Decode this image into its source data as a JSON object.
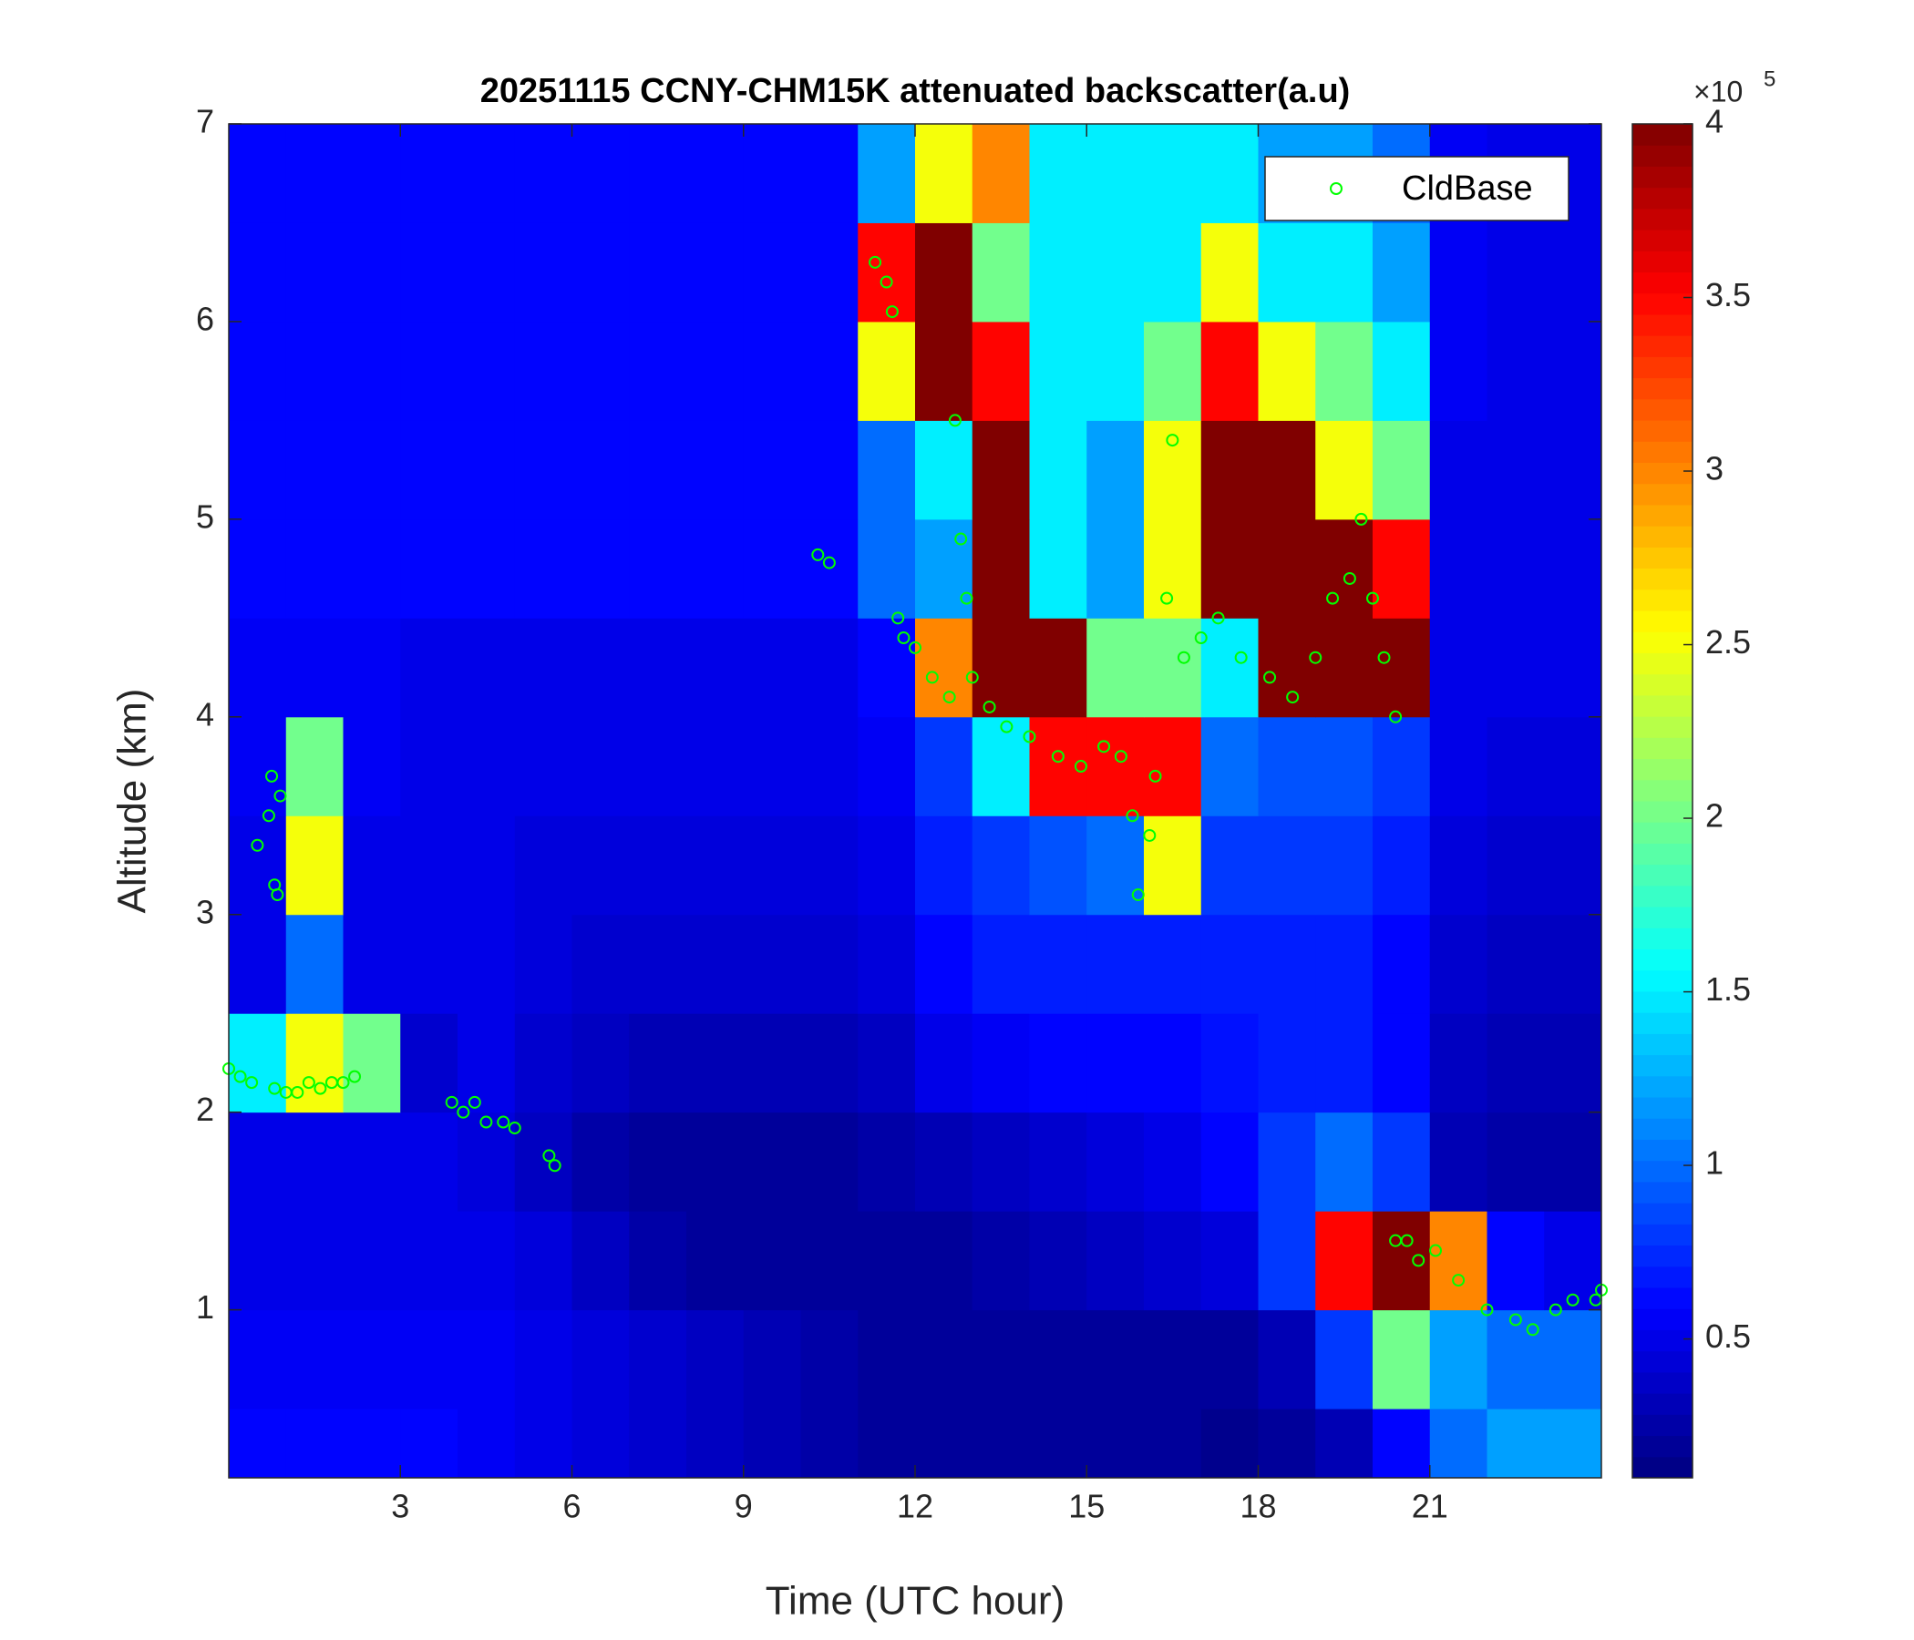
{
  "chart_data": {
    "type": "heatmap",
    "title": "20251115 CCNY-CHM15K attenuated backscatter(a.u)",
    "xlabel": "Time (UTC hour)",
    "ylabel": "Altitude (km)",
    "xlim": [
      0,
      24
    ],
    "xticks": [
      3,
      6,
      9,
      12,
      15,
      18,
      21
    ],
    "ylim": [
      0.15,
      7
    ],
    "yticks": [
      1,
      2,
      3,
      4,
      5,
      6,
      7
    ],
    "x_edges": [
      0,
      1,
      2,
      3,
      4,
      5,
      6,
      7,
      8,
      9,
      10,
      11,
      12,
      13,
      14,
      15,
      16,
      17,
      18,
      19,
      20,
      21,
      22,
      23,
      24
    ],
    "y_edges": [
      0.15,
      0.5,
      1,
      1.5,
      2,
      2.5,
      3,
      3.5,
      4,
      4.5,
      5,
      5.5,
      6,
      6.5,
      7
    ],
    "z": [
      [
        0.6,
        0.6,
        0.6,
        0.6,
        0.55,
        0.5,
        0.45,
        0.4,
        0.35,
        0.3,
        0.25,
        0.2,
        0.2,
        0.2,
        0.2,
        0.2,
        0.2,
        0.15,
        0.2,
        0.3,
        0.6,
        1.0,
        1.2,
        1.2
      ],
      [
        0.55,
        0.55,
        0.55,
        0.55,
        0.55,
        0.5,
        0.45,
        0.4,
        0.35,
        0.3,
        0.25,
        0.2,
        0.2,
        0.2,
        0.2,
        0.2,
        0.2,
        0.2,
        0.3,
        0.8,
        2.0,
        1.2,
        1.0,
        1.0
      ],
      [
        0.5,
        0.5,
        0.5,
        0.5,
        0.5,
        0.45,
        0.35,
        0.25,
        0.2,
        0.2,
        0.2,
        0.2,
        0.2,
        0.25,
        0.3,
        0.35,
        0.4,
        0.45,
        0.8,
        3.5,
        4,
        3.0,
        0.6,
        0.5
      ],
      [
        0.5,
        0.5,
        0.5,
        0.5,
        0.45,
        0.35,
        0.25,
        0.2,
        0.2,
        0.2,
        0.2,
        0.25,
        0.3,
        0.35,
        0.4,
        0.45,
        0.5,
        0.6,
        0.8,
        1.0,
        0.8,
        0.3,
        0.25,
        0.25
      ],
      [
        1.5,
        2.5,
        2.0,
        0.4,
        0.5,
        0.4,
        0.35,
        0.3,
        0.3,
        0.3,
        0.3,
        0.35,
        0.5,
        0.55,
        0.6,
        0.6,
        0.6,
        0.65,
        0.7,
        0.7,
        0.6,
        0.35,
        0.3,
        0.3
      ],
      [
        0.5,
        1.0,
        0.5,
        0.5,
        0.5,
        0.45,
        0.4,
        0.4,
        0.4,
        0.4,
        0.4,
        0.45,
        0.6,
        0.7,
        0.7,
        0.7,
        0.7,
        0.7,
        0.7,
        0.7,
        0.6,
        0.4,
        0.35,
        0.35
      ],
      [
        0.5,
        2.5,
        0.5,
        0.5,
        0.5,
        0.45,
        0.45,
        0.45,
        0.45,
        0.45,
        0.45,
        0.5,
        0.7,
        0.8,
        0.9,
        1.0,
        2.5,
        0.8,
        0.8,
        0.8,
        0.7,
        0.45,
        0.4,
        0.4
      ],
      [
        0.55,
        2.0,
        0.55,
        0.5,
        0.5,
        0.5,
        0.5,
        0.5,
        0.5,
        0.5,
        0.5,
        0.55,
        0.8,
        1.5,
        3.5,
        3.5,
        3.5,
        1.0,
        0.9,
        0.9,
        0.8,
        0.5,
        0.45,
        0.45
      ],
      [
        0.55,
        0.55,
        0.55,
        0.5,
        0.5,
        0.5,
        0.5,
        0.5,
        0.5,
        0.5,
        0.5,
        0.6,
        3.0,
        4,
        4,
        2.0,
        2.0,
        1.5,
        4,
        4,
        4,
        0.5,
        0.5,
        0.5
      ],
      [
        0.6,
        0.6,
        0.6,
        0.6,
        0.6,
        0.6,
        0.6,
        0.6,
        0.6,
        0.6,
        0.6,
        1.0,
        1.2,
        4,
        1.5,
        1.2,
        2.5,
        4,
        4,
        4,
        3.5,
        0.5,
        0.5,
        0.5
      ],
      [
        0.6,
        0.6,
        0.6,
        0.6,
        0.6,
        0.6,
        0.6,
        0.6,
        0.6,
        0.6,
        0.6,
        1.0,
        1.5,
        4,
        1.5,
        1.2,
        2.5,
        4,
        4,
        2.5,
        2.0,
        0.5,
        0.5,
        0.5
      ],
      [
        0.6,
        0.6,
        0.6,
        0.6,
        0.6,
        0.6,
        0.6,
        0.6,
        0.6,
        0.6,
        0.6,
        2.5,
        4,
        3.5,
        1.5,
        1.5,
        2.0,
        3.5,
        2.5,
        2.0,
        1.5,
        0.55,
        0.5,
        0.5
      ],
      [
        0.6,
        0.6,
        0.6,
        0.6,
        0.6,
        0.6,
        0.6,
        0.6,
        0.6,
        0.6,
        0.6,
        3.5,
        4,
        2.0,
        1.5,
        1.5,
        1.5,
        2.5,
        1.5,
        1.5,
        1.2,
        0.55,
        0.5,
        0.5
      ],
      [
        0.6,
        0.6,
        0.6,
        0.6,
        0.6,
        0.6,
        0.6,
        0.6,
        0.6,
        0.6,
        0.6,
        1.2,
        2.5,
        3.0,
        1.5,
        1.5,
        1.5,
        1.5,
        1.2,
        1.2,
        1.0,
        0.55,
        0.5,
        0.5
      ]
    ],
    "colormap": "jet",
    "clim": [
      0.1,
      4
    ],
    "cticks": [
      0.5,
      1,
      1.5,
      2,
      2.5,
      3,
      3.5,
      4
    ],
    "colorbar_multiplier": {
      "base": "×10",
      "exponent": "5"
    },
    "legend": "upper right",
    "series": [
      {
        "name": "CldBase",
        "type": "scatter",
        "color": "#00ff00",
        "x": [
          0.0,
          0.2,
          0.4,
          0.8,
          1.0,
          1.2,
          0.5,
          0.7,
          0.75,
          0.8,
          0.85,
          0.9,
          1.4,
          1.6,
          1.8,
          2.0,
          2.2,
          3.9,
          4.1,
          4.3,
          4.5,
          4.8,
          5.0,
          5.6,
          5.7,
          10.3,
          10.5,
          11.3,
          11.5,
          11.6,
          11.7,
          11.8,
          12.0,
          12.3,
          12.6,
          12.7,
          12.8,
          12.9,
          13.0,
          13.3,
          13.6,
          14.0,
          14.5,
          14.9,
          15.3,
          15.6,
          15.8,
          15.9,
          16.1,
          16.2,
          16.4,
          16.5,
          16.7,
          17.0,
          17.3,
          17.7,
          18.2,
          18.6,
          19.0,
          19.3,
          19.6,
          19.8,
          20.0,
          20.2,
          20.4,
          20.4,
          20.6,
          20.8,
          21.1,
          21.5,
          22.0,
          22.5,
          22.8,
          23.2,
          23.5,
          23.9,
          24.0
        ],
        "y": [
          2.22,
          2.18,
          2.15,
          2.12,
          2.1,
          2.1,
          3.35,
          3.5,
          3.7,
          3.15,
          3.1,
          3.6,
          2.15,
          2.12,
          2.15,
          2.15,
          2.18,
          2.05,
          2.0,
          2.05,
          1.95,
          1.95,
          1.92,
          1.78,
          1.73,
          4.82,
          4.78,
          6.3,
          6.2,
          6.05,
          4.5,
          4.4,
          4.35,
          4.2,
          4.1,
          5.5,
          4.9,
          4.6,
          4.2,
          4.05,
          3.95,
          3.9,
          3.8,
          3.75,
          3.85,
          3.8,
          3.5,
          3.1,
          3.4,
          3.7,
          4.6,
          5.4,
          4.3,
          4.4,
          4.5,
          4.3,
          4.2,
          4.1,
          4.3,
          4.6,
          4.7,
          5.0,
          4.6,
          4.3,
          4.0,
          1.35,
          1.35,
          1.25,
          1.3,
          1.15,
          1.0,
          0.95,
          0.9,
          1.0,
          1.05,
          1.05,
          1.1
        ]
      }
    ]
  }
}
